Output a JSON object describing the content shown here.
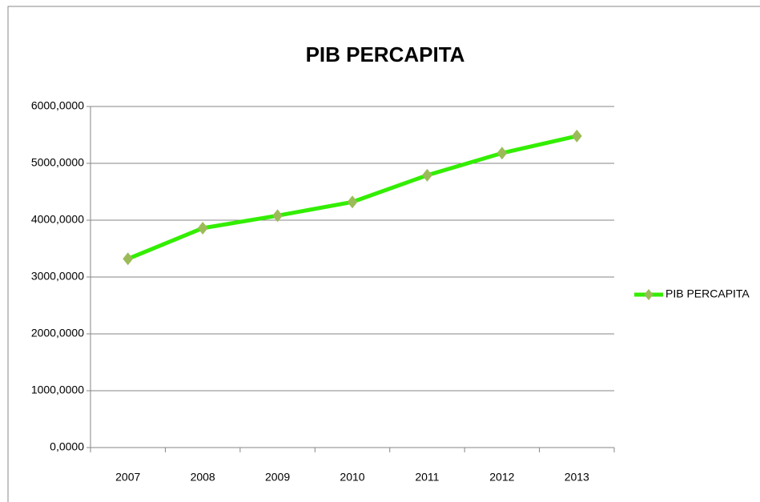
{
  "chart_data": {
    "type": "line",
    "title": "PIB PERCAPITA",
    "categories": [
      "2007",
      "2008",
      "2009",
      "2010",
      "2011",
      "2012",
      "2013"
    ],
    "series": [
      {
        "name": "PIB PERCAPITA",
        "color": "#33ee00",
        "marker_color": "#9bbb59",
        "values": [
          3320,
          3860,
          4080,
          4320,
          4790,
          5180,
          5480
        ]
      }
    ],
    "ylim": [
      0,
      6000
    ],
    "yticks": [
      {
        "value": 0,
        "label": "0,0000"
      },
      {
        "value": 1000,
        "label": "1000,0000"
      },
      {
        "value": 2000,
        "label": "2000,0000"
      },
      {
        "value": 3000,
        "label": "3000,0000"
      },
      {
        "value": 4000,
        "label": "4000,0000"
      },
      {
        "value": 5000,
        "label": "5000,0000"
      },
      {
        "value": 6000,
        "label": "6000,0000"
      }
    ],
    "grid": true,
    "legend": "right"
  }
}
